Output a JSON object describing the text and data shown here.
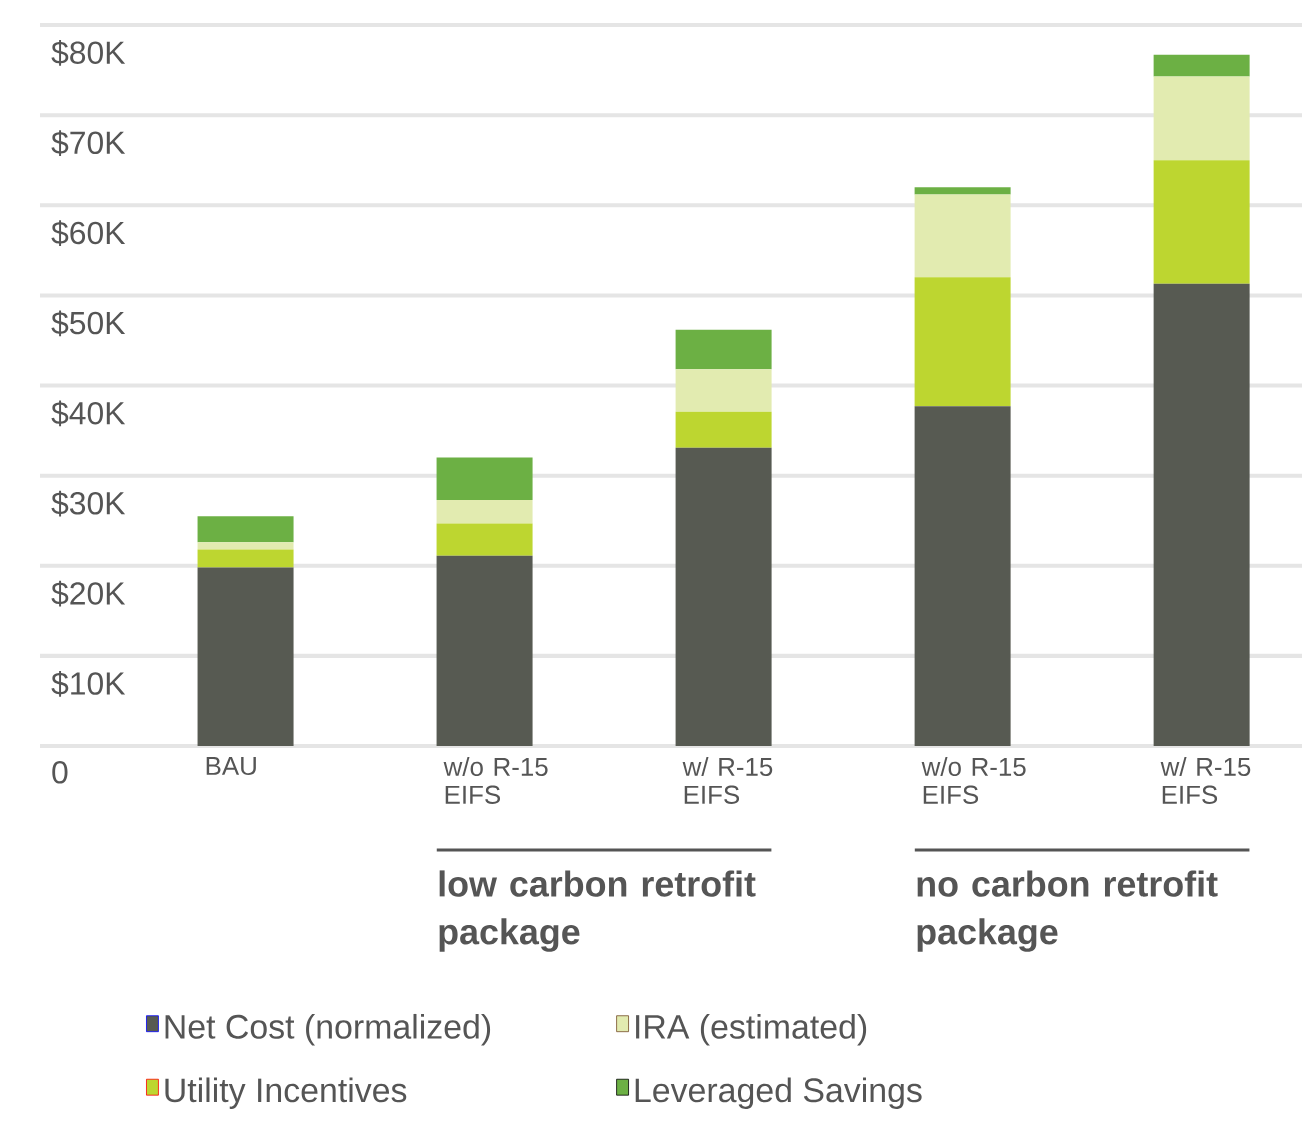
{
  "chart_data": {
    "type": "bar",
    "stacked": true,
    "categories": [
      "BAU",
      "w/o R-15 EIFS",
      "w/ R-15 EIFS",
      "w/o R-15 EIFS",
      "w/ R-15 EIFS"
    ],
    "series": [
      {
        "name": "Net Cost (normalized)",
        "color": "#575a52",
        "values": [
          19.8,
          21.1,
          33.1,
          37.7,
          51.3
        ]
      },
      {
        "name": "Utility Incentives",
        "color": "#bdd630",
        "values": [
          2.0,
          3.6,
          4.0,
          14.3,
          13.7
        ]
      },
      {
        "name": "IRA (estimated)",
        "color": "#e2ebb0",
        "values": [
          0.8,
          2.6,
          4.7,
          9.2,
          9.3
        ]
      },
      {
        "name": "Leveraged Savings",
        "color": "#6cb044",
        "values": [
          2.9,
          4.7,
          4.4,
          0.8,
          2.4
        ]
      }
    ],
    "ylim": [
      0,
      80
    ],
    "yticks": [
      0,
      {
        "value": 10,
        "label": "$10K"
      },
      {
        "value": 20,
        "label": "$20K"
      },
      {
        "value": 30,
        "label": "$30K"
      },
      {
        "value": 40,
        "label": "$40K"
      },
      {
        "value": 50,
        "label": "$50K"
      },
      {
        "value": 60,
        "label": "$60K"
      },
      {
        "value": 70,
        "label": "$70K"
      },
      {
        "value": 80,
        "label": "$80K"
      }
    ],
    "annotations": [
      "low carbon retrofit package",
      "no carbon retrofit package"
    ],
    "grid": "y",
    "legend": "bottom"
  }
}
